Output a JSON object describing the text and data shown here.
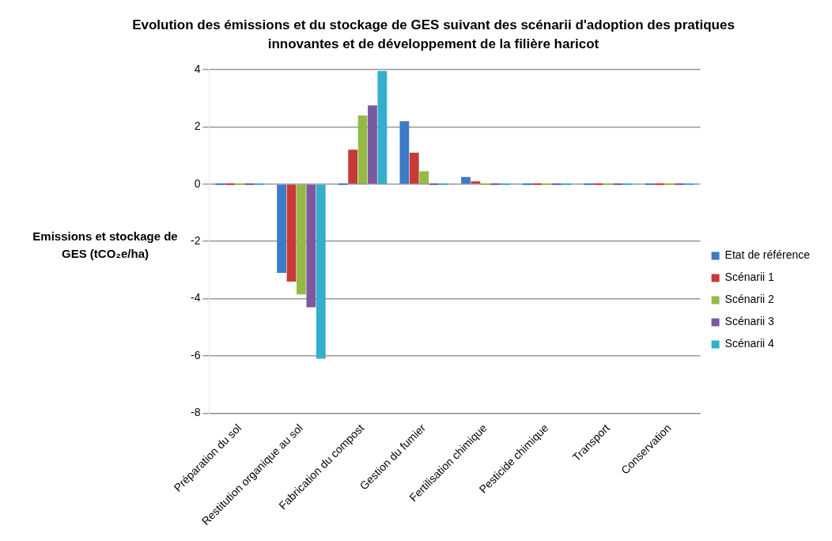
{
  "chart_data": {
    "type": "bar",
    "title": "Evolution des émissions et du stockage de GES suivant des scénarii  d'adoption des pratiques innovantes et de développement de la filière haricot",
    "ylabel": "Emissions et stockage de GES (tCO₂e/ha)",
    "categories": [
      "Préparation du sol",
      "Restitution organique au sol",
      "Fabrication du compost",
      "Gestion du fumier",
      "Fertilisation chimique",
      "Pesticide chimique",
      "Transport",
      "Conservation"
    ],
    "series": [
      {
        "name": "Etat de référence",
        "color": "#3d7ac7",
        "values": [
          0,
          -3.1,
          0,
          2.2,
          0.25,
          0,
          0,
          0
        ]
      },
      {
        "name": "Scénarii 1",
        "color": "#c73a37",
        "values": [
          0,
          -3.4,
          1.2,
          1.1,
          0.1,
          0,
          0,
          0
        ]
      },
      {
        "name": "Scénarii 2",
        "color": "#94ba45",
        "values": [
          0,
          -3.85,
          2.4,
          0.45,
          0,
          0,
          0,
          0
        ]
      },
      {
        "name": "Scénarii 3",
        "color": "#7c58a0",
        "values": [
          0,
          -4.3,
          2.75,
          0,
          0,
          0,
          0,
          0
        ]
      },
      {
        "name": "Scénarii 4",
        "color": "#33aecb",
        "values": [
          0,
          -6.1,
          3.95,
          0,
          0,
          0,
          0,
          0
        ]
      }
    ],
    "ylim": [
      -8,
      4
    ],
    "yticks": [
      -8,
      -6,
      -4,
      -2,
      0,
      2,
      4
    ],
    "grid": "y",
    "legend": "right"
  }
}
